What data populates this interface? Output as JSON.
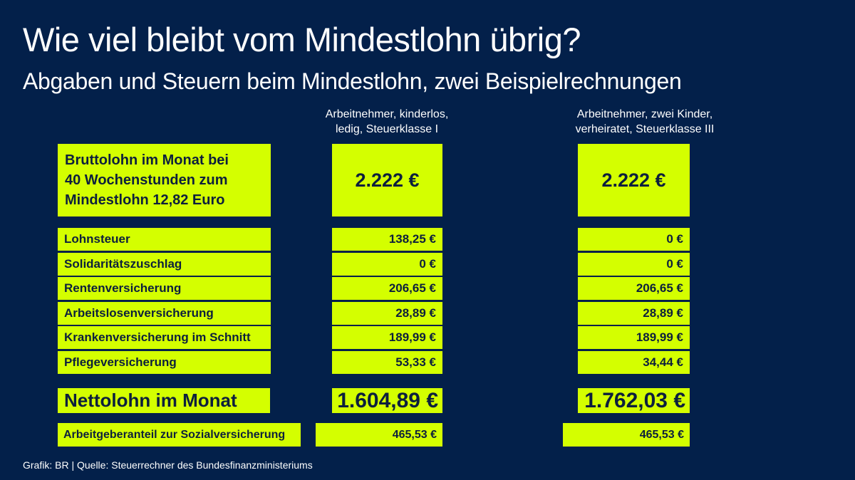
{
  "chart_data": {
    "type": "table",
    "title": "Wie viel bleibt vom Mindestlohn übrig?",
    "subtitle": "Abgaben und Steuern beim Mindestlohn, zwei Beispielrechnungen",
    "columns": [
      "Arbeitnehmer, kinderlos, ledig, Steuerklasse I",
      "Arbeitnehmer, zwei Kinder, verheiratet, Steuerklasse III"
    ],
    "column_lines": [
      [
        "Arbeitnehmer, kinderlos,",
        "ledig, Steuerklasse I"
      ],
      [
        "Arbeitnehmer, zwei Kinder,",
        "verheiratet, Steuerklasse III"
      ]
    ],
    "gross": {
      "label_lines": [
        "Bruttolohn im Monat bei",
        "40 Wochenstunden zum",
        "Mindestlohn 12,82 Euro"
      ],
      "values": [
        "2.222 €",
        "2.222 €"
      ]
    },
    "rows": [
      {
        "label": "Lohnsteuer",
        "values": [
          "138,25 €",
          "0 €"
        ]
      },
      {
        "label": "Solidaritätszuschlag",
        "values": [
          "0 €",
          "0 €"
        ]
      },
      {
        "label": "Rentenversicherung",
        "values": [
          "206,65 €",
          "206,65 €"
        ]
      },
      {
        "label": "Arbeitslosenversicherung",
        "values": [
          "28,89 €",
          "28,89 €"
        ]
      },
      {
        "label": "Krankenversicherung im Schnitt",
        "values": [
          "189,99 €",
          "189,99 €"
        ]
      },
      {
        "label": "Pflegeversicherung",
        "values": [
          "53,33 €",
          "34,44 €"
        ]
      }
    ],
    "net": {
      "label": "Nettolohn im Monat",
      "values": [
        "1.604,89 €",
        "1.762,03 €"
      ]
    },
    "employer": {
      "label": "Arbeitgeberanteil zur Sozialversicherung",
      "values": [
        "465,53 €",
        "465,53 €"
      ]
    },
    "numeric": {
      "gross": [
        2222,
        2222
      ],
      "lohnsteuer": [
        138.25,
        0
      ],
      "solidaritaetszuschlag": [
        0,
        0
      ],
      "rentenversicherung": [
        206.65,
        206.65
      ],
      "arbeitslosenversicherung": [
        28.89,
        28.89
      ],
      "krankenversicherung": [
        189.99,
        189.99
      ],
      "pflegeversicherung": [
        53.33,
        34.44
      ],
      "netto": [
        1604.89,
        1762.03
      ],
      "arbeitgeberanteil": [
        465.53,
        465.53
      ]
    }
  },
  "source": "Grafik: BR | Quelle: Steuerrechner des Bundesfinanzministeriums",
  "colors": {
    "background": "#03204a",
    "accent": "#d4ff00",
    "box_text": "#0c1f3d",
    "text": "#ffffff"
  }
}
